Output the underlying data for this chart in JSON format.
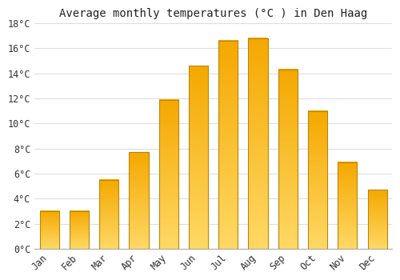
{
  "title": "Average monthly temperatures (°C ) in Den Haag",
  "months": [
    "Jan",
    "Feb",
    "Mar",
    "Apr",
    "May",
    "Jun",
    "Jul",
    "Aug",
    "Sep",
    "Oct",
    "Nov",
    "Dec"
  ],
  "values": [
    3.0,
    3.0,
    5.5,
    7.7,
    11.9,
    14.6,
    16.6,
    16.8,
    14.3,
    11.0,
    6.9,
    4.7
  ],
  "bar_color_top": "#F5A800",
  "bar_color_bottom": "#FFD966",
  "bar_edge_color": "#B8860B",
  "ylim": [
    0,
    18
  ],
  "yticks": [
    0,
    2,
    4,
    6,
    8,
    10,
    12,
    14,
    16,
    18
  ],
  "ytick_labels": [
    "0°C",
    "2°C",
    "4°C",
    "6°C",
    "8°C",
    "10°C",
    "12°C",
    "14°C",
    "16°C",
    "18°C"
  ],
  "background_color": "#FFFFFF",
  "plot_bg_color": "#FFFFFF",
  "grid_color": "#DDDDDD",
  "title_fontsize": 10,
  "tick_fontsize": 8.5,
  "figsize": [
    5.0,
    3.5
  ],
  "dpi": 100
}
